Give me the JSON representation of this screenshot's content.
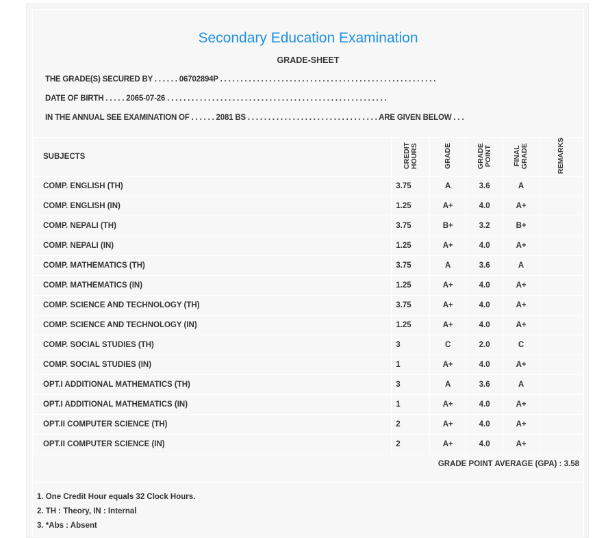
{
  "header": {
    "title": "Secondary Education Examination",
    "subtitle": "GRADE-SHEET"
  },
  "info": {
    "secured_by": "THE GRADE(S) SECURED BY . . . . . . 06702894P . . . . . . . . . . . . . . . . . . . . . . . . . . . . . . . . . . . . . . . . . . . . . . . . . . . . .",
    "dob": "DATE OF BIRTH . . . . . 2065-07-26 . . . . . . . . . . . . . . . . . . . . . . . . . . . . . . . . . . . . . . . . . . . . . . . . . . . . . .",
    "exam": "IN THE ANNUAL SEE EXAMINATION OF . . . . . . 2081 BS . . . . . . . . . . . . . . . . . . . . . . . . . . . . . . . . ARE GIVEN BELOW . . ."
  },
  "table": {
    "headers": [
      "SUBJECTS",
      "CREDIT HOURS",
      "GRADE",
      "GRADE POINT",
      "FINAL GRADE",
      "REMARKS"
    ],
    "rows": [
      [
        "COMP. ENGLISH (TH)",
        "3.75",
        "A",
        "3.6",
        "A"
      ],
      [
        "COMP. ENGLISH (IN)",
        "1.25",
        "A+",
        "4.0",
        "A+"
      ],
      [
        "COMP. NEPALI (TH)",
        "3.75",
        "B+",
        "3.2",
        "B+"
      ],
      [
        "COMP. NEPALI (IN)",
        "1.25",
        "A+",
        "4.0",
        "A+"
      ],
      [
        "COMP. MATHEMATICS (TH)",
        "3.75",
        "A",
        "3.6",
        "A"
      ],
      [
        "COMP. MATHEMATICS (IN)",
        "1.25",
        "A+",
        "4.0",
        "A+"
      ],
      [
        "COMP. SCIENCE AND TECHNOLOGY (TH)",
        "3.75",
        "A+",
        "4.0",
        "A+"
      ],
      [
        "COMP. SCIENCE AND TECHNOLOGY (IN)",
        "1.25",
        "A+",
        "4.0",
        "A+"
      ],
      [
        "COMP. SOCIAL STUDIES (TH)",
        "3",
        "C",
        "2.0",
        "C"
      ],
      [
        "COMP. SOCIAL STUDIES (IN)",
        "1",
        "A+",
        "4.0",
        "A+"
      ],
      [
        "OPT.I ADDITIONAL MATHEMATICS (TH)",
        "3",
        "A",
        "3.6",
        "A"
      ],
      [
        "OPT.I ADDITIONAL MATHEMATICS (IN)",
        "1",
        "A+",
        "4.0",
        "A+"
      ],
      [
        "OPT.II COMPUTER SCIENCE (TH)",
        "2",
        "A+",
        "4.0",
        "A+"
      ],
      [
        "OPT.II COMPUTER SCIENCE (IN)",
        "2",
        "A+",
        "4.0",
        "A+"
      ]
    ]
  },
  "gpa": "GRADE POINT AVERAGE (GPA) : 3.58",
  "notes": [
    "1. One Credit Hour equals 32 Clock Hours.",
    "2. TH : Theory, IN : Internal",
    "3. *Abs : Absent"
  ]
}
